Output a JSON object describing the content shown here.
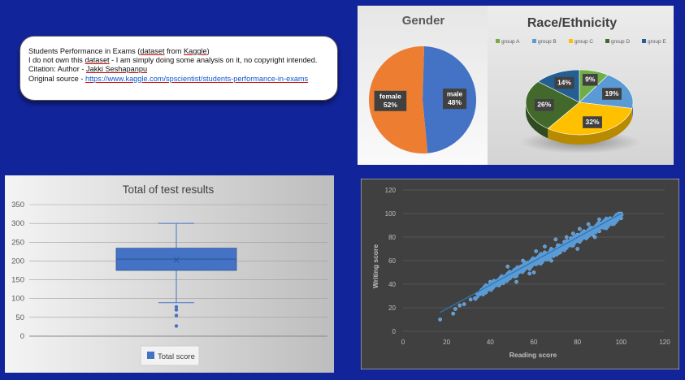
{
  "info_box": {
    "line1_a": "Students Performance in Exams (",
    "line1_b": "dataset",
    "line1_c": " from ",
    "line1_d": "Kaggle",
    "line1_e": ")",
    "line2_a": "I do not own this ",
    "line2_b": "dataset",
    "line2_c": " - I am simply doing some analysis on it, no copyright intended.",
    "line3_a": "Citation: Author - ",
    "line3_b": "Jakki Seshapanpu",
    "line4_a": "Original source - ",
    "line4_b": "https://www.kaggle.com/spscientist/students-performance-in-exams"
  },
  "chart_data": [
    {
      "type": "pie",
      "title": "Gender",
      "categories": [
        "female",
        "male"
      ],
      "values": [
        52,
        48
      ],
      "labels": [
        "52%",
        "48%"
      ],
      "colors": [
        "#ed7d31",
        "#4472c4"
      ]
    },
    {
      "type": "pie",
      "title": "Race/Ethnicity",
      "categories": [
        "group A",
        "group B",
        "group C",
        "group D",
        "group E"
      ],
      "values": [
        9,
        19,
        32,
        26,
        14
      ],
      "labels": [
        "9%",
        "19%",
        "32%",
        "26%",
        "14%"
      ],
      "colors": [
        "#70ad47",
        "#5b9bd5",
        "#ffc000",
        "#43682b",
        "#255e91"
      ],
      "legend": "top"
    },
    {
      "type": "box",
      "title": "Total of test results",
      "series": [
        {
          "name": "Total score",
          "min": 89,
          "q1": 175,
          "median": 205,
          "mean": 203,
          "q3": 234,
          "max": 300,
          "outliers": [
            78,
            70,
            55,
            27
          ]
        }
      ],
      "ylim": [
        0,
        350
      ],
      "yticks": [
        0,
        50,
        100,
        150,
        200,
        250,
        300,
        350
      ],
      "legend": "bottom"
    },
    {
      "type": "scatter",
      "xlabel": "Reading score",
      "ylabel": "Writing score",
      "xlim": [
        0,
        120
      ],
      "ylim": [
        0,
        120
      ],
      "xticks": [
        0,
        20,
        40,
        60,
        80,
        100,
        120
      ],
      "yticks": [
        0,
        20,
        40,
        60,
        80,
        100,
        120
      ],
      "trendline": {
        "x": [
          17,
          100
        ],
        "y": [
          16,
          100
        ]
      },
      "points": [
        [
          17,
          10
        ],
        [
          23,
          15
        ],
        [
          24,
          19
        ],
        [
          26,
          22
        ],
        [
          28,
          23
        ],
        [
          31,
          27
        ],
        [
          33,
          28
        ],
        [
          34,
          32
        ],
        [
          36,
          35
        ],
        [
          38,
          33
        ],
        [
          39,
          37
        ],
        [
          40,
          42
        ],
        [
          41,
          38
        ],
        [
          43,
          40
        ],
        [
          44,
          43
        ],
        [
          45,
          46
        ],
        [
          46,
          41
        ],
        [
          47,
          44
        ],
        [
          48,
          49
        ],
        [
          49,
          45
        ],
        [
          50,
          48
        ],
        [
          51,
          52
        ],
        [
          52,
          47
        ],
        [
          53,
          50
        ],
        [
          54,
          55
        ],
        [
          55,
          51
        ],
        [
          56,
          54
        ],
        [
          57,
          58
        ],
        [
          58,
          53
        ],
        [
          59,
          56
        ],
        [
          60,
          61
        ],
        [
          61,
          57
        ],
        [
          62,
          63
        ],
        [
          63,
          59
        ],
        [
          64,
          62
        ],
        [
          65,
          67
        ],
        [
          66,
          61
        ],
        [
          67,
          65
        ],
        [
          68,
          70
        ],
        [
          69,
          64
        ],
        [
          70,
          69
        ],
        [
          71,
          73
        ],
        [
          72,
          67
        ],
        [
          73,
          72
        ],
        [
          74,
          76
        ],
        [
          75,
          71
        ],
        [
          76,
          74
        ],
        [
          77,
          79
        ],
        [
          78,
          73
        ],
        [
          79,
          78
        ],
        [
          80,
          82
        ],
        [
          81,
          76
        ],
        [
          82,
          80
        ],
        [
          83,
          85
        ],
        [
          84,
          79
        ],
        [
          85,
          83
        ],
        [
          86,
          88
        ],
        [
          87,
          82
        ],
        [
          88,
          86
        ],
        [
          89,
          90
        ],
        [
          90,
          85
        ],
        [
          91,
          89
        ],
        [
          92,
          93
        ],
        [
          93,
          88
        ],
        [
          94,
          92
        ],
        [
          95,
          96
        ],
        [
          96,
          91
        ],
        [
          97,
          95
        ],
        [
          98,
          98
        ],
        [
          99,
          97
        ],
        [
          100,
          100
        ],
        [
          100,
          96
        ],
        [
          99,
          100
        ],
        [
          61,
          68
        ],
        [
          71,
          66
        ],
        [
          81,
          87
        ],
        [
          58,
          49
        ],
        [
          68,
          60
        ],
        [
          78,
          83
        ],
        [
          88,
          80
        ],
        [
          48,
          55
        ],
        [
          52,
          42
        ],
        [
          65,
          72
        ],
        [
          75,
          80
        ],
        [
          85,
          91
        ],
        [
          55,
          60
        ],
        [
          60,
          50
        ],
        [
          70,
          78
        ],
        [
          80,
          70
        ],
        [
          90,
          95
        ]
      ]
    }
  ]
}
